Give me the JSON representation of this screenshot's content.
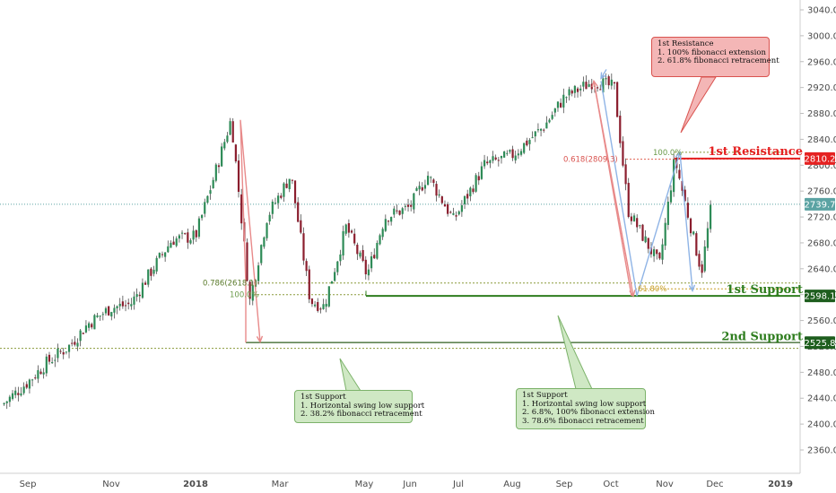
{
  "chart_data": {
    "type": "candlestick",
    "instrument_note": "",
    "y_range": [
      2310,
      3060
    ],
    "x_ticks": [
      "Sep",
      "Nov",
      "2018",
      "Mar",
      "May",
      "Jun",
      "Jul",
      "Aug",
      "Sep",
      "Oct",
      "Nov",
      "Dec",
      "2019"
    ],
    "y_ticks": [
      3040.0,
      3000.0,
      2960.0,
      2920.0,
      2880.0,
      2840.0,
      2800.0,
      2760.0,
      2720.0,
      2680.0,
      2640.0,
      2600.0,
      2560.0,
      2520.0,
      2480.0,
      2440.0,
      2400.0,
      2360.0
    ],
    "series": [
      {
        "date": "2017-08-21",
        "value": 2430
      },
      {
        "date": "2017-09-01",
        "value": 2465
      },
      {
        "date": "2017-09-15",
        "value": 2495
      },
      {
        "date": "2017-10-01",
        "value": 2520
      },
      {
        "date": "2017-10-15",
        "value": 2555
      },
      {
        "date": "2017-11-01",
        "value": 2580
      },
      {
        "date": "2017-11-15",
        "value": 2585
      },
      {
        "date": "2017-12-01",
        "value": 2640
      },
      {
        "date": "2017-12-15",
        "value": 2685
      },
      {
        "date": "2018-01-01",
        "value": 2690
      },
      {
        "date": "2018-01-15",
        "value": 2790
      },
      {
        "date": "2018-01-26",
        "value": 2872
      },
      {
        "date": "2018-02-08",
        "value": 2590
      },
      {
        "date": "2018-02-20",
        "value": 2720
      },
      {
        "date": "2018-03-09",
        "value": 2785
      },
      {
        "date": "2018-03-23",
        "value": 2590
      },
      {
        "date": "2018-04-02",
        "value": 2582
      },
      {
        "date": "2018-04-18",
        "value": 2705
      },
      {
        "date": "2018-05-03",
        "value": 2630
      },
      {
        "date": "2018-05-15",
        "value": 2720
      },
      {
        "date": "2018-06-01",
        "value": 2735
      },
      {
        "date": "2018-06-12",
        "value": 2785
      },
      {
        "date": "2018-06-28",
        "value": 2715
      },
      {
        "date": "2018-07-16",
        "value": 2800
      },
      {
        "date": "2018-08-01",
        "value": 2815
      },
      {
        "date": "2018-08-20",
        "value": 2860
      },
      {
        "date": "2018-09-01",
        "value": 2905
      },
      {
        "date": "2018-09-20",
        "value": 2930
      },
      {
        "date": "2018-10-03",
        "value": 2920
      },
      {
        "date": "2018-10-11",
        "value": 2730
      },
      {
        "date": "2018-10-29",
        "value": 2645
      },
      {
        "date": "2018-11-07",
        "value": 2810
      },
      {
        "date": "2018-11-23",
        "value": 2635
      },
      {
        "date": "2018-11-29",
        "value": 2740
      }
    ],
    "levels": [
      {
        "label": "1st Resistance",
        "value": 2810.2,
        "color": "#e52121"
      },
      {
        "label": "1st Support",
        "value": 2598.1,
        "color": "#2e7d1e"
      },
      {
        "label": "2nd Support",
        "value": 2525.8,
        "color": "#2e7d1e"
      }
    ],
    "price_tags": [
      {
        "text": "2810.2",
        "value": 2810.2,
        "bg": "#e52121"
      },
      {
        "text": "2739.7",
        "value": 2739.7,
        "bg": "#5ba3a3"
      },
      {
        "text": "2598.1",
        "value": 2598.1,
        "bg": "#1e5e1e"
      },
      {
        "text": "2525.8",
        "value": 2525.8,
        "bg": "#1e5e1e"
      }
    ],
    "fib_labels": [
      {
        "text": "0.618(2809.3)",
        "color": "#d9534f"
      },
      {
        "text": "100.0%",
        "color": "#6b9a4a"
      },
      {
        "text": "0.786(2618.1)",
        "color": "#5a7a2a"
      },
      {
        "text": "100.0%",
        "color": "#6b9a4a"
      },
      {
        "text": "61.80%",
        "color": "#c9a02a"
      }
    ]
  },
  "notes": {
    "resistance": [
      "1st Resistance",
      "1. 100% fibonacci extension",
      "2. 61.8% fibonacci retracement"
    ],
    "support_mid": [
      "1st Support",
      "1. Horizontal swing low support",
      "2. 38.2% fibonacci retracement"
    ],
    "support_right": [
      "1st Support",
      "1. Horizontal swing low support",
      "2. 6.8%, 100% fibonacci extension",
      "3. 78.6% fibonacci retracement"
    ]
  }
}
